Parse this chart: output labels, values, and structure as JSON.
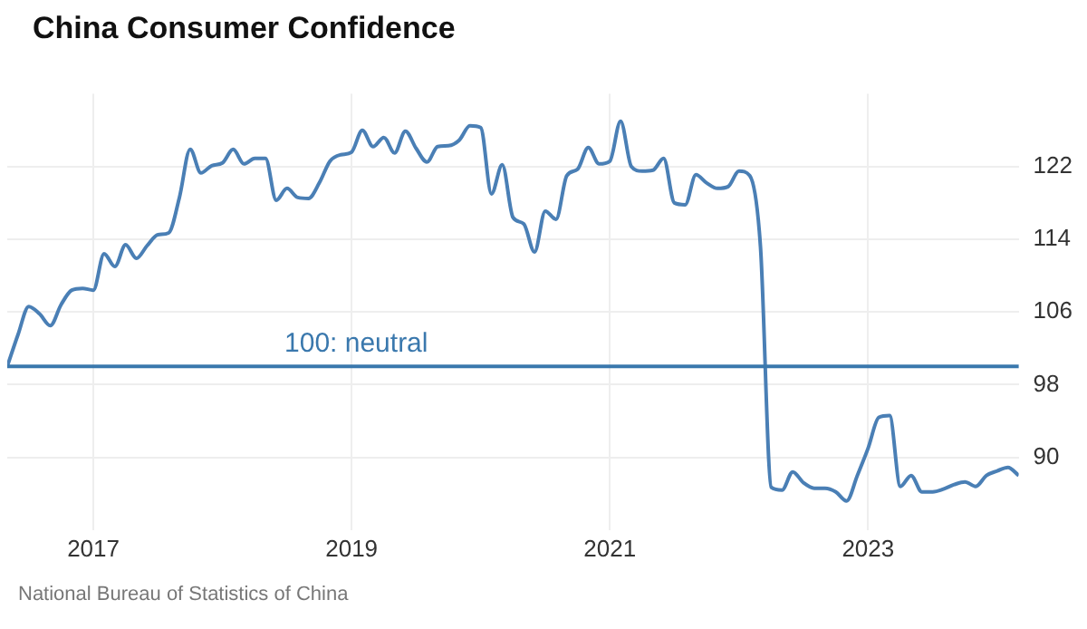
{
  "chart_data": {
    "type": "line",
    "title": "China Consumer Confidence",
    "annotations": [
      "National Bureau of Statistics of China"
    ],
    "x": [
      "2016-05",
      "2016-06",
      "2016-07",
      "2016-08",
      "2016-09",
      "2016-10",
      "2016-11",
      "2016-12",
      "2017-01",
      "2017-02",
      "2017-03",
      "2017-04",
      "2017-05",
      "2017-06",
      "2017-07",
      "2017-08",
      "2017-09",
      "2017-10",
      "2017-11",
      "2017-12",
      "2018-01",
      "2018-02",
      "2018-03",
      "2018-04",
      "2018-05",
      "2018-06",
      "2018-07",
      "2018-08",
      "2018-09",
      "2018-10",
      "2018-11",
      "2018-12",
      "2019-01",
      "2019-02",
      "2019-03",
      "2019-04",
      "2019-05",
      "2019-06",
      "2019-07",
      "2019-08",
      "2019-09",
      "2019-10",
      "2019-11",
      "2019-12",
      "2020-01",
      "2020-02",
      "2020-03",
      "2020-04",
      "2020-05",
      "2020-06",
      "2020-07",
      "2020-08",
      "2020-09",
      "2020-10",
      "2020-11",
      "2020-12",
      "2021-01",
      "2021-02",
      "2021-03",
      "2021-04",
      "2021-05",
      "2021-06",
      "2021-07",
      "2021-08",
      "2021-09",
      "2021-10",
      "2021-11",
      "2021-12",
      "2022-01",
      "2022-02",
      "2022-03",
      "2022-04",
      "2022-05",
      "2022-06",
      "2022-07",
      "2022-08",
      "2022-09",
      "2022-10",
      "2022-11",
      "2022-12",
      "2023-01",
      "2023-02",
      "2023-03",
      "2023-04",
      "2023-05",
      "2023-06",
      "2023-07",
      "2023-08",
      "2023-09",
      "2023-10",
      "2023-11",
      "2023-12",
      "2024-01",
      "2024-02",
      "2024-03"
    ],
    "series": [
      {
        "color": "#4a7fb5",
        "values": [
          100,
          103.5,
          106.6,
          105.8,
          104.5,
          106.8,
          108.4,
          108.6,
          108.4,
          112.4,
          111,
          113.4,
          111.9,
          113.3,
          114.5,
          114.7,
          118.6,
          123.9,
          121.3,
          122.1,
          122.4,
          123.9,
          122.3,
          122.9,
          122.9,
          118.3,
          119.6,
          118.6,
          118.5,
          120.2,
          122.6,
          123.3,
          123.6,
          126,
          124.2,
          125.2,
          123.5,
          125.9,
          124,
          122.5,
          124.2,
          124.3,
          124.9,
          126.5,
          126.3,
          119,
          122.2,
          116.4,
          115.7,
          112.6,
          117.1,
          116.2,
          121,
          121.7,
          124.1,
          122.3,
          122.6,
          127,
          122,
          121.5,
          121.6,
          122.9,
          118,
          117.8,
          121.1,
          120.2,
          119.6,
          119.8,
          121.5,
          121,
          113.2,
          86.7,
          86.4,
          88.4,
          87.2,
          86.6,
          86.6,
          86.2,
          85.2,
          88,
          91,
          94.4,
          94.6,
          86.8,
          88,
          86.2,
          86.2,
          86.5,
          87,
          87.3,
          86.8,
          88,
          88.5,
          88.9,
          88
        ]
      }
    ],
    "xlim": [
      "2016-05",
      "2024-03"
    ],
    "xticks": [
      {
        "value": "2017-01",
        "label": "2017"
      },
      {
        "value": "2019-01",
        "label": "2019"
      },
      {
        "value": "2021-01",
        "label": "2021"
      },
      {
        "value": "2023-01",
        "label": "2023"
      }
    ],
    "ylim": [
      82,
      130
    ],
    "yticks": [
      90,
      98,
      106,
      114,
      122
    ],
    "ref_lines": [
      {
        "axis": "y",
        "value": 100,
        "label": "100: neutral",
        "color": "#3a78ad"
      }
    ],
    "grid": true,
    "legend": false,
    "marker": "none",
    "line_style": "solid"
  }
}
